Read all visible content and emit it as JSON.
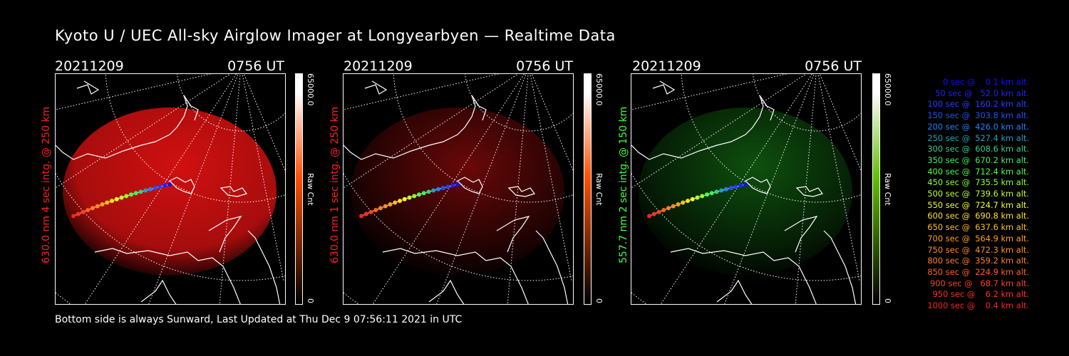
{
  "title": "Kyoto U / UEC All-sky Airglow Imager at Longyearbyen — Realtime Data",
  "panels": [
    {
      "date": "20211209",
      "time": "0756 UT",
      "ylabel": "630.0 nm 4 sec intg. @ 250 km",
      "ylabel_color": "#ff2020",
      "cbar_max": "65000.0",
      "cbar_unit": "Raw Cnt",
      "cbar_min": "0",
      "glow_color": "#d01010",
      "glow_strength": 1.0,
      "cbar_color": "#ff5000"
    },
    {
      "date": "20211209",
      "time": "0756 UT",
      "ylabel": "630.0 nm 1 sec intg. @ 250 km",
      "ylabel_color": "#ff2020",
      "cbar_max": "65000.0",
      "cbar_unit": "Raw Cnt",
      "cbar_min": "0",
      "glow_color": "#6a0808",
      "glow_strength": 0.4,
      "cbar_color": "#ff5000"
    },
    {
      "date": "20211209",
      "time": "0756 UT",
      "ylabel": "557.7 nm 2 sec intg. @ 150 km",
      "ylabel_color": "#40ff40",
      "cbar_max": "65000.0",
      "cbar_unit": "Raw Cnt",
      "cbar_min": "0",
      "glow_color": "#0e500e",
      "glow_strength": 0.45,
      "cbar_color": "#60c000"
    }
  ],
  "footer": "Bottom side is always Sunward, Last Updated at Thu Dec  9 07:56:11 2021 in UTC",
  "legend": [
    {
      "text": "   0 sec @    0.1 km alt.",
      "color": "#1010ff"
    },
    {
      "text": "  50 sec @   52.0 km alt.",
      "color": "#2020ff"
    },
    {
      "text": " 100 sec @  160.2 km alt.",
      "color": "#2040ff"
    },
    {
      "text": " 150 sec @  303.8 km alt.",
      "color": "#2050ff"
    },
    {
      "text": " 200 sec @  426.0 km alt.",
      "color": "#2080ff"
    },
    {
      "text": " 250 sec @  527.4 km alt.",
      "color": "#20a0c0"
    },
    {
      "text": " 300 sec @  608.6 km alt.",
      "color": "#30d090"
    },
    {
      "text": " 350 sec @  670.2 km alt.",
      "color": "#40f060"
    },
    {
      "text": " 400 sec @  712.4 km alt.",
      "color": "#50ff40"
    },
    {
      "text": " 450 sec @  735.5 km alt.",
      "color": "#90ff30"
    },
    {
      "text": " 500 sec @  739.6 km alt.",
      "color": "#c0ff20"
    },
    {
      "text": " 550 sec @  724.7 km alt.",
      "color": "#f0ff20"
    },
    {
      "text": " 600 sec @  690.8 km alt.",
      "color": "#ffe020"
    },
    {
      "text": " 650 sec @  637.6 km alt.",
      "color": "#ffc020"
    },
    {
      "text": " 700 sec @  564.9 km alt.",
      "color": "#ffa020"
    },
    {
      "text": " 750 sec @  472.3 km alt.",
      "color": "#ff9020"
    },
    {
      "text": " 800 sec @  359.2 km alt.",
      "color": "#ff8020"
    },
    {
      "text": " 850 sec @  224.9 km alt.",
      "color": "#ff6020"
    },
    {
      "text": " 900 sec @   68.7 km alt.",
      "color": "#ff4020"
    },
    {
      "text": " 950 sec @    6.2 km alt.",
      "color": "#ff3020"
    },
    {
      "text": "1000 sec @    0.4 km alt.",
      "color": "#ff2020"
    }
  ]
}
